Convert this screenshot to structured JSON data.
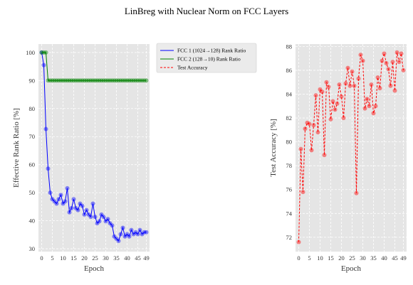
{
  "figure_title": "LinBreg with Nuclear Norm on FCC Layers",
  "colors": {
    "plot_bg": "#e5e5e5",
    "grid": "#ffffff",
    "fcc1": "#0000ff",
    "fcc2": "#008000",
    "test": "#ff0000"
  },
  "chart_data": [
    {
      "type": "line",
      "xlabel": "Epoch",
      "ylabel": "Effective Rank Ratio [%]",
      "xlim": [
        -1.5,
        50.5
      ],
      "ylim": [
        29,
        103
      ],
      "xticks": [
        0,
        5,
        10,
        15,
        20,
        25,
        30,
        35,
        40,
        45,
        49
      ],
      "yticks": [
        30,
        40,
        50,
        60,
        70,
        80,
        90,
        100
      ],
      "grid": true,
      "legend_position": "outside-right",
      "series": [
        {
          "name": "FCC 1 (1024→128) Rank Ratio",
          "color": "#0000ff",
          "marker": "circle",
          "values": [
            100,
            95.5,
            72.7,
            58.6,
            50.0,
            47.7,
            46.9,
            46.1,
            47.7,
            49.2,
            46.1,
            46.9,
            51.6,
            43.0,
            44.5,
            47.7,
            44.5,
            43.8,
            46.1,
            45.3,
            42.2,
            43.8,
            42.2,
            41.4,
            46.1,
            41.4,
            39.1,
            39.8,
            42.2,
            41.4,
            39.8,
            40.6,
            39.1,
            38.3,
            34.4,
            33.6,
            32.8,
            35.2,
            37.5,
            34.4,
            35.2,
            34.4,
            36.7,
            35.2,
            35.9,
            35.2,
            36.7,
            35.2,
            35.9,
            35.9
          ]
        },
        {
          "name": "FCC 2 (128→10) Rank Ratio",
          "color": "#008000",
          "marker": "circle",
          "values": [
            100,
            100,
            100,
            90,
            90,
            90,
            90,
            90,
            90,
            90,
            90,
            90,
            90,
            90,
            90,
            90,
            90,
            90,
            90,
            90,
            90,
            90,
            90,
            90,
            90,
            90,
            90,
            90,
            90,
            90,
            90,
            90,
            90,
            90,
            90,
            90,
            90,
            90,
            90,
            90,
            90,
            90,
            90,
            90,
            90,
            90,
            90,
            90,
            90,
            90
          ]
        }
      ]
    },
    {
      "type": "line",
      "xlabel": "Epoch",
      "ylabel": "Test Accuracy [%]",
      "xlim": [
        -1.5,
        50.5
      ],
      "ylim": [
        70.8,
        88.2
      ],
      "xticks": [
        0,
        5,
        10,
        15,
        20,
        25,
        30,
        35,
        40,
        45,
        49
      ],
      "yticks": [
        72,
        74,
        76,
        78,
        80,
        82,
        84,
        86,
        88
      ],
      "grid": true,
      "series": [
        {
          "name": "Test Accuracy",
          "color": "#ff0000",
          "marker": "circle",
          "linestyle": "dashed",
          "values": [
            71.6,
            79.4,
            75.8,
            81.1,
            81.6,
            81.5,
            79.3,
            81.4,
            83.9,
            80.8,
            84.4,
            84.2,
            78.9,
            85.0,
            84.6,
            81.9,
            83.4,
            82.7,
            83.2,
            84.8,
            83.8,
            82.0,
            84.9,
            86.2,
            84.7,
            85.9,
            84.7,
            75.7,
            85.3,
            87.3,
            86.8,
            82.8,
            83.6,
            83.0,
            84.8,
            82.4,
            83.0,
            85.4,
            84.5,
            86.8,
            87.4,
            86.6,
            86.1,
            84.7,
            86.7,
            84.3,
            87.5,
            86.7,
            87.4,
            86.0
          ]
        }
      ]
    }
  ]
}
